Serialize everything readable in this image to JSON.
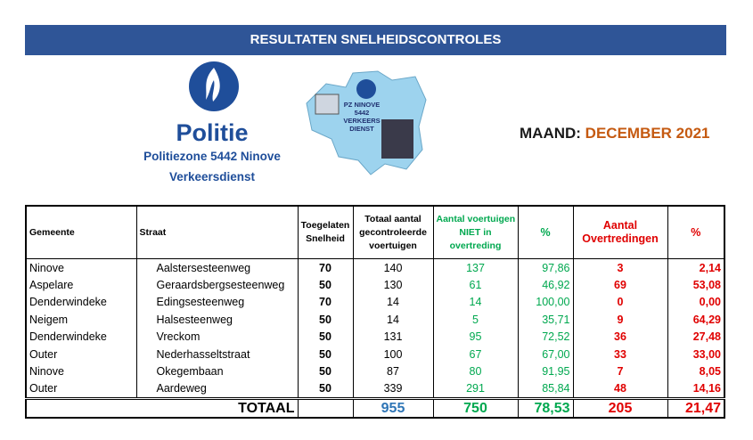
{
  "header": {
    "title": "RESULTATEN SNELHEIDSCONTROLES"
  },
  "logo": {
    "name": "Politie",
    "zone": "Politiezone 5442 Ninove",
    "unit": "Verkeersdienst"
  },
  "map_label": [
    "PZ NINOVE",
    "5442",
    "VERKEERS",
    "DIENST"
  ],
  "month": {
    "label": "MAAND:",
    "value": "DECEMBER 2021"
  },
  "table": {
    "columns": [
      [
        "Gemeente"
      ],
      [
        "Straat"
      ],
      [
        "Toegelaten",
        "Snelheid"
      ],
      [
        "Totaal aantal",
        "gecontroleerde",
        "voertuigen"
      ],
      [
        "Aantal voertuigen",
        "NIET in",
        "overtreding"
      ],
      [
        "%"
      ],
      [
        "Aantal",
        "Overtredingen"
      ],
      [
        "%"
      ]
    ],
    "rows": [
      [
        "Ninove",
        "Aalstersesteenweg",
        "70",
        "140",
        "137",
        "97,86",
        "3",
        "2,14"
      ],
      [
        "Aspelare",
        "Geraardsbergsesteenweg",
        "50",
        "130",
        "61",
        "46,92",
        "69",
        "53,08"
      ],
      [
        "Denderwindeke",
        "Edingsesteenweg",
        "70",
        "14",
        "14",
        "100,00",
        "0",
        "0,00"
      ],
      [
        "Neigem",
        "Halsesteenweg",
        "50",
        "14",
        "5",
        "35,71",
        "9",
        "64,29"
      ],
      [
        "Denderwindeke",
        "Vreckom",
        "50",
        "131",
        "95",
        "72,52",
        "36",
        "27,48"
      ],
      [
        "Outer",
        "Nederhasseltstraat",
        "50",
        "100",
        "67",
        "67,00",
        "33",
        "33,00"
      ],
      [
        "Ninove",
        "Okegembaan",
        "50",
        "87",
        "80",
        "91,95",
        "7",
        "8,05"
      ],
      [
        "Outer",
        "Aardeweg",
        "50",
        "339",
        "291",
        "85,84",
        "48",
        "14,16"
      ]
    ],
    "total": {
      "label": "TOTAAL",
      "values": [
        "955",
        "750",
        "78,53",
        "205",
        "21,47"
      ]
    }
  }
}
